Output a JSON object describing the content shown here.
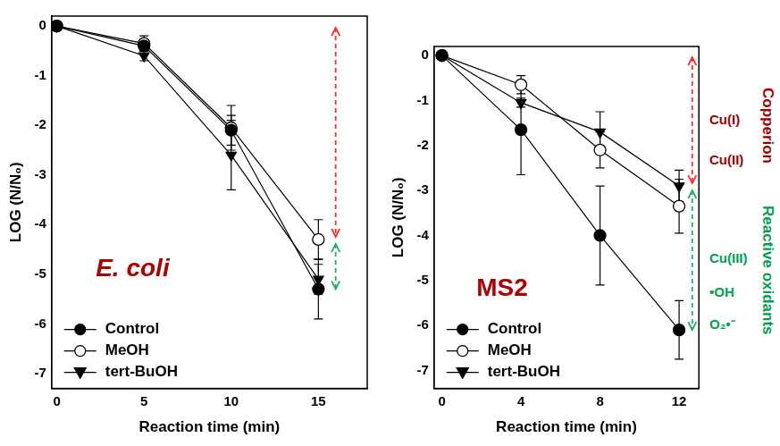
{
  "chart_data": [
    {
      "type": "line",
      "title": "E. coli",
      "x_label": "Reaction time (min)",
      "y_label": "LOG (N/N₀)",
      "x": [
        0,
        5,
        10,
        15
      ],
      "xlim": [
        -0.3,
        17.8
      ],
      "xticks": [
        0,
        5,
        10,
        15
      ],
      "ylim": [
        -7.3,
        0.2
      ],
      "yticks": [
        -7,
        -6,
        -5,
        -4,
        -3,
        -2,
        -1,
        0
      ],
      "grid": false,
      "legend": "bottom-left",
      "series": [
        {
          "name": "Control",
          "color": "#000000",
          "marker": "filled_circle",
          "line_style": "solid",
          "values": [
            0,
            -0.4,
            -2.1,
            -5.3
          ],
          "errors": [
            0,
            0.1,
            0.3,
            0.6
          ]
        },
        {
          "name": "MeOH",
          "color": "#000000",
          "marker": "open_circle",
          "line_style": "solid",
          "values": [
            0,
            -0.35,
            -2.05,
            -4.3
          ],
          "errors": [
            0,
            0.15,
            0.45,
            0.4
          ]
        },
        {
          "name": "tert-BuOH",
          "color": "#000000",
          "marker": "filled_triangle_down",
          "line_style": "solid",
          "values": [
            0,
            -0.6,
            -2.6,
            -5.1
          ],
          "errors": [
            0,
            0.1,
            0.7,
            0.3
          ]
        }
      ]
    },
    {
      "type": "line",
      "title": "MS2",
      "x_label": "Reaction time (min)",
      "y_label": "LOG (N/N₀)",
      "x": [
        0,
        4,
        8,
        12
      ],
      "xlim": [
        -0.4,
        13.0
      ],
      "xticks": [
        0,
        4,
        8,
        12
      ],
      "ylim": [
        -7.4,
        0.2
      ],
      "yticks": [
        -7,
        -6,
        -5,
        -4,
        -3,
        -2,
        -1,
        0
      ],
      "grid": false,
      "legend": "bottom-left",
      "series": [
        {
          "name": "Control",
          "color": "#000000",
          "marker": "filled_circle",
          "line_style": "solid",
          "values": [
            0,
            -1.65,
            -4.0,
            -6.1
          ],
          "errors": [
            0,
            1.0,
            1.1,
            0.65
          ]
        },
        {
          "name": "MeOH",
          "color": "#000000",
          "marker": "open_circle",
          "line_style": "solid",
          "values": [
            0,
            -0.65,
            -2.1,
            -3.35
          ],
          "errors": [
            0,
            0.2,
            0.4,
            0.6
          ]
        },
        {
          "name": "tert-BuOH",
          "color": "#000000",
          "marker": "filled_triangle_down",
          "line_style": "solid",
          "values": [
            0,
            -1.05,
            -1.7,
            -2.9
          ],
          "errors": [
            0,
            0.1,
            0.45,
            0.35
          ]
        }
      ],
      "annotations": [
        {
          "group": "Copperion",
          "color": "#a00000",
          "items": [
            "Cu(I)",
            "Cu(II)"
          ]
        },
        {
          "group": "Reactive oxidants",
          "color": "#00a050",
          "items": [
            "Cu(III)",
            "•OH",
            "O₂•⁻"
          ]
        }
      ]
    }
  ]
}
